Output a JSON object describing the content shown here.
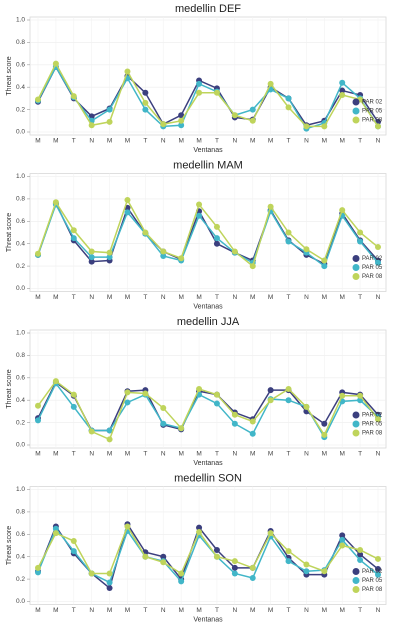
{
  "chart_data": [
    {
      "type": "line",
      "title": "medellin DEF",
      "xlabel": "Ventanas",
      "ylabel": "Threat score",
      "categories": [
        "M",
        "M",
        "T",
        "N",
        "M",
        "M",
        "T",
        "N",
        "M",
        "M",
        "T",
        "N",
        "M",
        "M",
        "T",
        "N",
        "M",
        "M",
        "T",
        "N"
      ],
      "series": [
        {
          "name": "PAR 02",
          "color": "#3b3f7e",
          "values": [
            0.27,
            0.58,
            0.3,
            0.14,
            0.21,
            0.5,
            0.35,
            0.07,
            0.15,
            0.46,
            0.39,
            0.13,
            0.11,
            0.4,
            0.3,
            0.06,
            0.1,
            0.37,
            0.33,
            0.09
          ]
        },
        {
          "name": "PAR 05",
          "color": "#41b6c8",
          "values": [
            0.28,
            0.58,
            0.31,
            0.1,
            0.2,
            0.48,
            0.2,
            0.05,
            0.06,
            0.43,
            0.36,
            0.15,
            0.2,
            0.38,
            0.3,
            0.03,
            0.08,
            0.44,
            0.3,
            0.05
          ]
        },
        {
          "name": "PAR 08",
          "color": "#bfd45b",
          "values": [
            0.29,
            0.61,
            0.32,
            0.06,
            0.09,
            0.54,
            0.26,
            0.07,
            0.1,
            0.35,
            0.35,
            0.15,
            0.1,
            0.43,
            0.22,
            0.05,
            0.05,
            0.33,
            0.29,
            0.05
          ]
        }
      ],
      "ylim": [
        0,
        1.0
      ],
      "yticks": [
        {
          "value": 0,
          "label": "0.0"
        },
        0.2,
        0.4,
        0.6,
        0.8,
        {
          "value": 1.0,
          "label": "1.0"
        }
      ],
      "grid": true,
      "legend": "lower right"
    },
    {
      "type": "line",
      "title": "medellin MAM",
      "xlabel": "Ventanas",
      "ylabel": "Threat score",
      "categories": [
        "M",
        "M",
        "T",
        "N",
        "M",
        "M",
        "T",
        "N",
        "M",
        "M",
        "T",
        "N",
        "M",
        "M",
        "T",
        "N",
        "M",
        "M",
        "T",
        "N"
      ],
      "series": [
        {
          "name": "PAR 02",
          "color": "#3b3f7e",
          "values": [
            0.3,
            0.76,
            0.43,
            0.24,
            0.25,
            0.72,
            0.49,
            0.33,
            0.26,
            0.69,
            0.4,
            0.32,
            0.25,
            0.7,
            0.43,
            0.3,
            0.22,
            0.67,
            0.43,
            0.25
          ]
        },
        {
          "name": "PAR 05",
          "color": "#41b6c8",
          "values": [
            0.3,
            0.75,
            0.45,
            0.28,
            0.28,
            0.68,
            0.49,
            0.29,
            0.25,
            0.65,
            0.45,
            0.32,
            0.23,
            0.69,
            0.42,
            0.32,
            0.2,
            0.65,
            0.42,
            0.23
          ]
        },
        {
          "name": "PAR 08",
          "color": "#bfd45b",
          "values": [
            0.31,
            0.77,
            0.52,
            0.33,
            0.32,
            0.79,
            0.5,
            0.33,
            0.27,
            0.75,
            0.55,
            0.33,
            0.2,
            0.73,
            0.5,
            0.35,
            0.25,
            0.7,
            0.5,
            0.37
          ]
        }
      ],
      "ylim": [
        0,
        1.0
      ],
      "yticks": [
        {
          "value": 0,
          "label": "0.0"
        },
        0.2,
        0.4,
        0.6,
        0.8,
        {
          "value": 1.0,
          "label": "1.0"
        }
      ],
      "grid": true,
      "legend": "lower right"
    },
    {
      "type": "line",
      "title": "medellin JJA",
      "xlabel": "Ventanas",
      "ylabel": "Threat score",
      "categories": [
        "M",
        "M",
        "T",
        "N",
        "M",
        "M",
        "T",
        "N",
        "M",
        "M",
        "T",
        "N",
        "M",
        "M",
        "T",
        "N",
        "M",
        "M",
        "T",
        "N"
      ],
      "series": [
        {
          "name": "PAR 02",
          "color": "#3b3f7e",
          "values": [
            0.24,
            0.56,
            0.44,
            0.13,
            0.13,
            0.48,
            0.49,
            0.18,
            0.14,
            0.48,
            0.45,
            0.29,
            0.23,
            0.49,
            0.49,
            0.3,
            0.19,
            0.47,
            0.45,
            0.27
          ]
        },
        {
          "name": "PAR 05",
          "color": "#41b6c8",
          "values": [
            0.22,
            0.55,
            0.34,
            0.13,
            0.13,
            0.38,
            0.45,
            0.19,
            0.15,
            0.45,
            0.37,
            0.19,
            0.1,
            0.41,
            0.4,
            0.34,
            0.07,
            0.39,
            0.4,
            0.25
          ]
        },
        {
          "name": "PAR 08",
          "color": "#bfd45b",
          "values": [
            0.35,
            0.57,
            0.45,
            0.12,
            0.05,
            0.47,
            0.46,
            0.33,
            0.15,
            0.5,
            0.45,
            0.27,
            0.21,
            0.4,
            0.5,
            0.34,
            0.09,
            0.44,
            0.44,
            0.23
          ]
        }
      ],
      "ylim": [
        0,
        1.0
      ],
      "yticks": [
        {
          "value": 0,
          "label": "0.0"
        },
        0.2,
        0.4,
        0.6,
        0.8,
        {
          "value": 1.0,
          "label": "1.0"
        }
      ],
      "grid": true,
      "legend": "lower right"
    },
    {
      "type": "line",
      "title": "medellin SON",
      "xlabel": "Ventanas",
      "ylabel": "Threat score",
      "categories": [
        "M",
        "M",
        "T",
        "N",
        "M",
        "M",
        "T",
        "N",
        "M",
        "M",
        "T",
        "N",
        "M",
        "M",
        "T",
        "N",
        "M",
        "M",
        "T",
        "N"
      ],
      "series": [
        {
          "name": "PAR 02",
          "color": "#3b3f7e",
          "values": [
            0.27,
            0.67,
            0.43,
            0.25,
            0.12,
            0.69,
            0.44,
            0.4,
            0.2,
            0.66,
            0.46,
            0.3,
            0.3,
            0.63,
            0.39,
            0.24,
            0.24,
            0.59,
            0.42,
            0.29
          ]
        },
        {
          "name": "PAR 05",
          "color": "#41b6c8",
          "values": [
            0.26,
            0.65,
            0.45,
            0.25,
            0.17,
            0.63,
            0.4,
            0.36,
            0.18,
            0.59,
            0.4,
            0.25,
            0.21,
            0.58,
            0.36,
            0.27,
            0.28,
            0.55,
            0.37,
            0.24
          ]
        },
        {
          "name": "PAR 08",
          "color": "#bfd45b",
          "values": [
            0.3,
            0.61,
            0.54,
            0.25,
            0.25,
            0.67,
            0.4,
            0.35,
            0.25,
            0.62,
            0.4,
            0.36,
            0.3,
            0.61,
            0.45,
            0.33,
            0.27,
            0.5,
            0.46,
            0.38
          ]
        }
      ],
      "ylim": [
        0,
        1.0
      ],
      "yticks": [
        {
          "value": 0,
          "label": "0.0"
        },
        0.2,
        0.4,
        0.6,
        0.8,
        {
          "value": 1.0,
          "label": "1.0"
        }
      ],
      "grid": true,
      "legend": "lower right"
    }
  ]
}
